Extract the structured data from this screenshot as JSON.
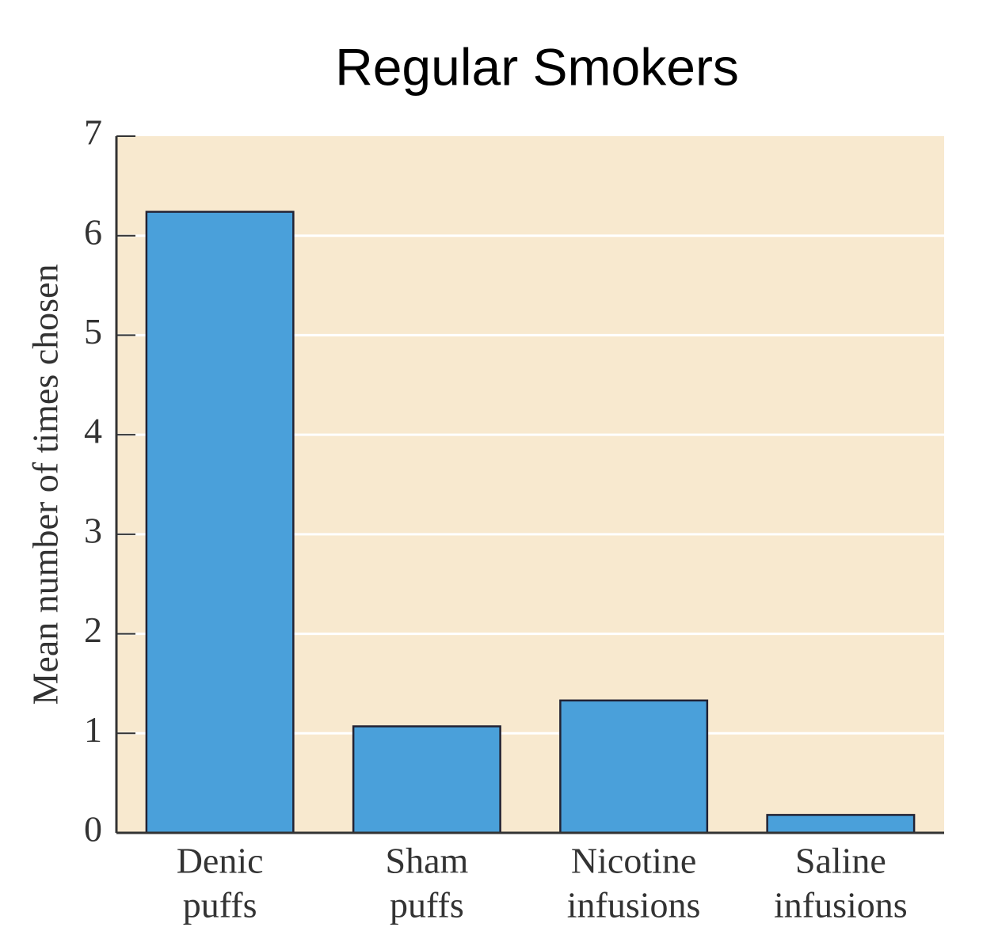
{
  "chart_data": {
    "type": "bar",
    "title": "Regular Smokers",
    "y_label": "Mean number of times chosen",
    "categories": [
      [
        "Denic",
        "puffs"
      ],
      [
        "Sham",
        "puffs"
      ],
      [
        "Nicotine",
        "infusions"
      ],
      [
        "Saline",
        "infusions"
      ]
    ],
    "values": [
      6.24,
      1.07,
      1.33,
      0.18
    ],
    "color": "#4aa0da",
    "ylim": [
      0,
      7
    ],
    "yticks": [
      0,
      1,
      2,
      3,
      4,
      5,
      6,
      7
    ],
    "grid": true
  }
}
